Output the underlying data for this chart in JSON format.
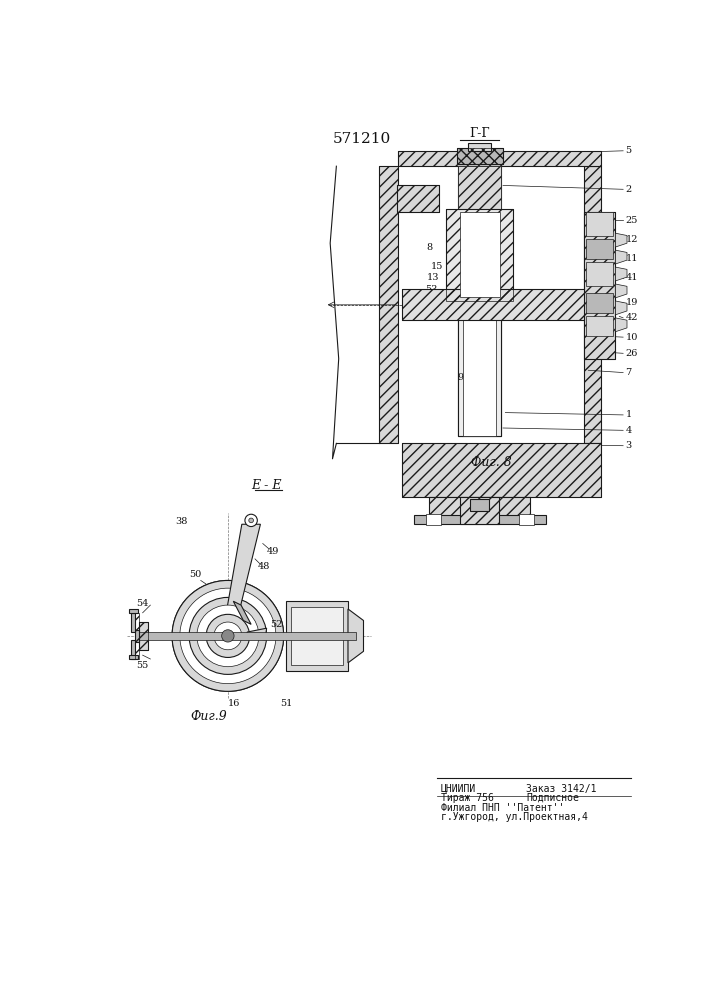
{
  "title": "571210",
  "bg_color": "#ffffff",
  "line_color": "#1a1a1a",
  "text_color": "#111111",
  "fig8_label": "Фиг. 8",
  "fig9_label": "Фиг.9",
  "section_gg": "Г-Г",
  "section_ee": "Е - Е",
  "gray_light": "#d8d8d8",
  "gray_med": "#b8b8b8",
  "gray_dark": "#888888",
  "white": "#ffffff"
}
